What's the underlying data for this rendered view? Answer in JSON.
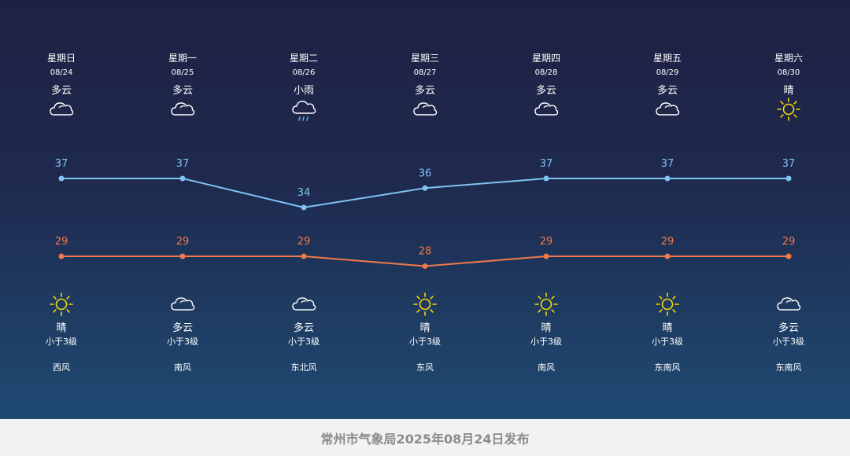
{
  "days": [
    {
      "weekday": "星期日",
      "date": "08/24",
      "day_weather": "多云",
      "day_icon": "cloud-icon",
      "night_weather": "晴",
      "night_icon": "sun-icon",
      "wind_level": "小于3级",
      "wind_dir": "西风"
    },
    {
      "weekday": "星期一",
      "date": "08/25",
      "day_weather": "多云",
      "day_icon": "cloud-icon",
      "night_weather": "多云",
      "night_icon": "cloud-icon",
      "wind_level": "小于3级",
      "wind_dir": "南风"
    },
    {
      "weekday": "星期二",
      "date": "08/26",
      "day_weather": "小雨",
      "day_icon": "rain-icon",
      "night_weather": "多云",
      "night_icon": "cloud-icon",
      "wind_level": "小于3级",
      "wind_dir": "东北风"
    },
    {
      "weekday": "星期三",
      "date": "08/27",
      "day_weather": "多云",
      "day_icon": "cloud-icon",
      "night_weather": "晴",
      "night_icon": "sun-icon",
      "wind_level": "小于3级",
      "wind_dir": "东风"
    },
    {
      "weekday": "星期四",
      "date": "08/28",
      "day_weather": "多云",
      "day_icon": "cloud-icon",
      "night_weather": "晴",
      "night_icon": "sun-icon",
      "wind_level": "小于3级",
      "wind_dir": "南风"
    },
    {
      "weekday": "星期五",
      "date": "08/29",
      "day_weather": "多云",
      "day_icon": "cloud-icon",
      "night_weather": "晴",
      "night_icon": "sun-icon",
      "wind_level": "小于3级",
      "wind_dir": "东南风"
    },
    {
      "weekday": "星期六",
      "date": "08/30",
      "day_weather": "晴",
      "day_icon": "sun-icon",
      "night_weather": "多云",
      "night_icon": "cloud-icon",
      "wind_level": "小于3级",
      "wind_dir": "东南风"
    }
  ],
  "chart_data": {
    "type": "line",
    "categories": [
      "08/24",
      "08/25",
      "08/26",
      "08/27",
      "08/28",
      "08/29",
      "08/30"
    ],
    "series": [
      {
        "values": [
          37,
          37,
          34,
          36,
          37,
          37,
          37
        ],
        "color": "#7ec3f4"
      },
      {
        "values": [
          29,
          29,
          29,
          28,
          29,
          29,
          29
        ],
        "color": "#f27a4a"
      }
    ],
    "data_labels": true,
    "legend": "none",
    "grid": false
  },
  "colors": {
    "background_top": "#1e2143",
    "background_bottom": "#1f4a72",
    "sun": "#f5d90a",
    "cloud": "#ffffff",
    "rain": "#5aa8e8",
    "footer_text": "#8c8c8c"
  },
  "footer": {
    "text": "常州市气象局2025年08月24日发布"
  }
}
